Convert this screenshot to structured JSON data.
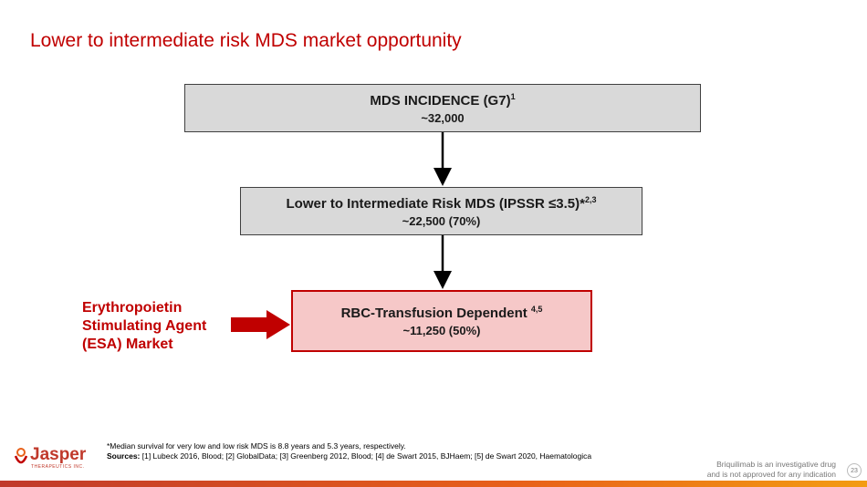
{
  "header": {
    "title": "Lower to intermediate risk MDS market opportunity"
  },
  "boxes": [
    {
      "label": "MDS INCIDENCE (G7)",
      "sup": "1",
      "value": "~32,000"
    },
    {
      "label": "Lower to Intermediate Risk MDS (IPSSR ≤3.5)*",
      "sup": "2,3",
      "value": "~22,500 (70%)"
    },
    {
      "label": "RBC-Transfusion Dependent ",
      "sup": "4,5",
      "value": "~11,250 (50%)"
    }
  ],
  "side_label": [
    "Erythropoietin",
    "Stimulating Agent",
    "(ESA) Market"
  ],
  "footnote": "*Median survival for very low and low risk MDS is 8.8 years and 5.3 years, respectively.",
  "sources": {
    "label": "Sources:",
    "text": " [1] Lubeck 2016, Blood; [2] GlobalData; [3] Greenberg 2012, Blood; [4] de Swart 2015, BJHaem; [5] de Swart 2020, Haematologica"
  },
  "logo": {
    "name": "Jasper",
    "sub": "THERAPEUTICS INC."
  },
  "disclaimer": [
    "Briquilimab is an investigative drug",
    "and is not approved for any indication"
  ],
  "page_number": "23"
}
